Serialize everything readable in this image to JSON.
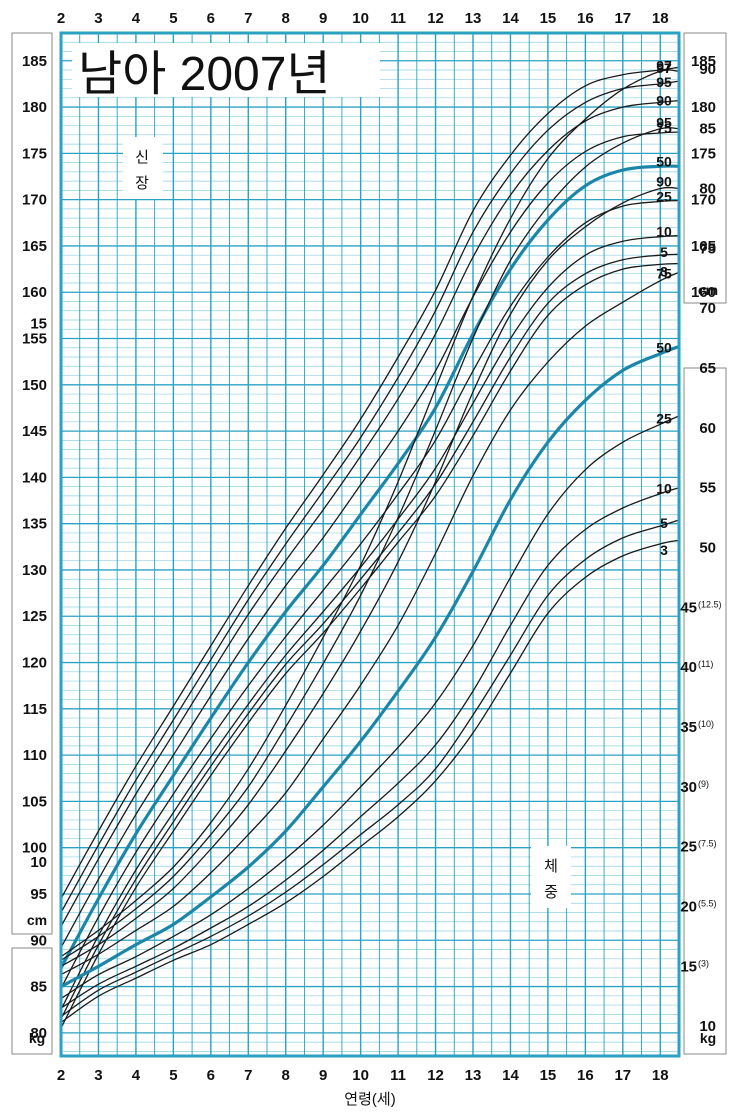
{
  "title": "남아 2007년",
  "xlabel": "연령(세)",
  "colors": {
    "grid": "#2aa2c4",
    "grid_minor": "#8fd0e3",
    "plot_bg": "#ffffff",
    "curve": "#1a1a1a",
    "median": "#1c86a8"
  },
  "height_panel": {
    "label_chars": [
      "신",
      "장"
    ],
    "left_unit": "cm",
    "right_unit": "cm"
  },
  "weight_panel": {
    "label_chars": [
      "체",
      "중"
    ],
    "left_unit": "kg",
    "right_unit": "kg",
    "right_secondary": [
      "12.5",
      "11",
      "10",
      "9",
      "7.5",
      "5.5",
      "3"
    ]
  },
  "chart_data": {
    "type": "line",
    "title": "남아 2007년",
    "xlabel": "연령(세)",
    "x_ticks": [
      2,
      3,
      4,
      5,
      6,
      7,
      8,
      9,
      10,
      11,
      12,
      13,
      14,
      15,
      16,
      17,
      18
    ],
    "xlim": [
      2,
      18.5
    ],
    "grid": true,
    "height": {
      "unit": "cm",
      "label": "신장",
      "ylim": [
        77.5,
        188
      ],
      "left_ticks": [
        80,
        85,
        90,
        95,
        100,
        105,
        110,
        115,
        120,
        125,
        130,
        135,
        140,
        145,
        150,
        155,
        160,
        165,
        170,
        175,
        180,
        185
      ],
      "right_ticks": [
        160,
        165,
        170,
        175,
        180,
        185
      ],
      "x": [
        2,
        3,
        4,
        5,
        6,
        7,
        8,
        9,
        10,
        11,
        12,
        13,
        14,
        15,
        16,
        17,
        18,
        18.5
      ],
      "series": [
        {
          "name": "3",
          "values": [
            80.5,
            88.5,
            95.7,
            101.8,
            107.8,
            113.5,
            118.8,
            123.2,
            128.0,
            133.0,
            138.0,
            144.5,
            151.5,
            157.5,
            160.8,
            162.5,
            163.0,
            163.1
          ]
        },
        {
          "name": "5",
          "values": [
            81.5,
            89.5,
            96.6,
            102.8,
            108.8,
            114.5,
            119.8,
            124.2,
            129.0,
            134.0,
            139.3,
            146.0,
            153.0,
            158.8,
            162.0,
            163.5,
            164.0,
            164.1
          ]
        },
        {
          "name": "10",
          "values": [
            82.5,
            90.5,
            97.6,
            103.8,
            109.8,
            115.5,
            120.8,
            125.5,
            130.3,
            135.5,
            141.0,
            148.0,
            155.0,
            160.5,
            164.0,
            165.5,
            166.0,
            166.1
          ]
        },
        {
          "name": "25",
          "values": [
            84.8,
            92.5,
            99.5,
            105.8,
            111.8,
            117.5,
            122.8,
            127.8,
            132.8,
            138.2,
            144.0,
            151.5,
            158.5,
            163.8,
            167.5,
            169.3,
            169.8,
            169.9
          ]
        },
        {
          "name": "50",
          "values": [
            87.0,
            94.5,
            101.5,
            107.8,
            114.0,
            120.0,
            125.5,
            130.5,
            136.0,
            141.5,
            147.5,
            155.5,
            162.5,
            167.8,
            171.5,
            173.2,
            173.6,
            173.6
          ]
        },
        {
          "name": "75",
          "values": [
            89.2,
            96.6,
            103.6,
            110.0,
            116.4,
            122.6,
            128.3,
            133.5,
            139.2,
            145.0,
            151.5,
            159.5,
            166.5,
            171.8,
            175.2,
            176.8,
            177.2,
            177.3
          ]
        },
        {
          "name": "90",
          "values": [
            91.5,
            98.8,
            105.8,
            112.3,
            118.8,
            125.2,
            131.0,
            136.5,
            142.3,
            148.5,
            155.5,
            163.8,
            170.5,
            175.3,
            178.5,
            180.0,
            180.5,
            180.7
          ]
        },
        {
          "name": "95",
          "values": [
            93.0,
            100.3,
            107.3,
            113.8,
            120.3,
            126.8,
            132.8,
            138.5,
            144.3,
            150.8,
            158.0,
            166.5,
            172.8,
            177.5,
            180.5,
            182.0,
            182.5,
            182.8
          ]
        },
        {
          "name": "97",
          "values": [
            94.5,
            101.8,
            108.8,
            115.3,
            121.8,
            128.3,
            134.5,
            140.3,
            146.3,
            153.0,
            160.2,
            168.8,
            174.8,
            179.3,
            182.3,
            183.5,
            184.0,
            184.3
          ]
        }
      ]
    },
    "weight": {
      "unit": "kg",
      "label": "체중",
      "ylim_left": [
        8.2,
        17.7
      ],
      "left_ticks": [
        10,
        15
      ],
      "ylim": [
        7.5,
        93
      ],
      "right_ticks": [
        10,
        15,
        20,
        25,
        30,
        35,
        40,
        45,
        50,
        55,
        60,
        65,
        70,
        75,
        80,
        85,
        90
      ],
      "x": [
        2,
        3,
        4,
        5,
        6,
        7,
        8,
        9,
        10,
        11,
        12,
        13,
        14,
        15,
        16,
        17,
        18,
        18.5
      ],
      "series": [
        {
          "name": "3",
          "values": [
            10.3,
            12.5,
            14.0,
            15.5,
            16.8,
            18.5,
            20.3,
            22.5,
            25.0,
            27.5,
            30.5,
            34.5,
            39.5,
            44.5,
            47.5,
            49.3,
            50.3,
            50.6
          ]
        },
        {
          "name": "5",
          "values": [
            10.8,
            13.0,
            14.5,
            16.0,
            17.5,
            19.2,
            21.2,
            23.5,
            26.0,
            28.5,
            31.5,
            36.0,
            41.0,
            46.0,
            49.0,
            50.8,
            51.8,
            52.3
          ]
        },
        {
          "name": "10",
          "values": [
            11.5,
            13.5,
            15.0,
            16.5,
            18.2,
            20.0,
            22.2,
            24.7,
            27.5,
            30.3,
            33.5,
            38.0,
            43.5,
            48.5,
            51.5,
            53.3,
            54.5,
            55.0
          ]
        },
        {
          "name": "25",
          "values": [
            12.3,
            14.3,
            15.8,
            17.5,
            19.3,
            21.5,
            24.0,
            26.8,
            30.0,
            33.3,
            37.0,
            41.8,
            47.5,
            52.8,
            56.5,
            58.8,
            60.3,
            61.0
          ]
        },
        {
          "name": "50",
          "values": [
            13.3,
            15.0,
            16.8,
            18.5,
            20.8,
            23.3,
            26.3,
            30.0,
            33.8,
            38.0,
            42.5,
            48.0,
            54.0,
            58.8,
            62.3,
            64.8,
            66.2,
            66.8
          ]
        },
        {
          "name": "75",
          "values": [
            14.3,
            16.0,
            18.0,
            20.0,
            22.8,
            26.0,
            29.5,
            34.0,
            38.5,
            43.5,
            49.5,
            56.0,
            61.5,
            65.5,
            68.5,
            70.5,
            72.3,
            73.0
          ]
        },
        {
          "name": "90",
          "values": [
            15.0,
            16.8,
            19.0,
            21.5,
            24.8,
            28.5,
            33.0,
            37.8,
            43.0,
            48.8,
            55.5,
            63.0,
            69.5,
            74.0,
            76.8,
            78.8,
            80.0,
            80.0
          ]
        },
        {
          "name": "95",
          "values": [
            15.5,
            17.5,
            19.8,
            22.5,
            26.0,
            30.0,
            35.0,
            40.3,
            46.0,
            52.5,
            59.8,
            67.5,
            74.0,
            78.5,
            81.8,
            83.8,
            85.0,
            85.0
          ]
        },
        {
          "name": "97",
          "values": [
            15.8,
            18.0,
            20.5,
            23.3,
            27.0,
            31.5,
            36.8,
            42.5,
            48.5,
            55.5,
            63.3,
            71.0,
            77.5,
            82.5,
            85.8,
            88.3,
            89.8,
            89.8
          ]
        }
      ]
    }
  }
}
